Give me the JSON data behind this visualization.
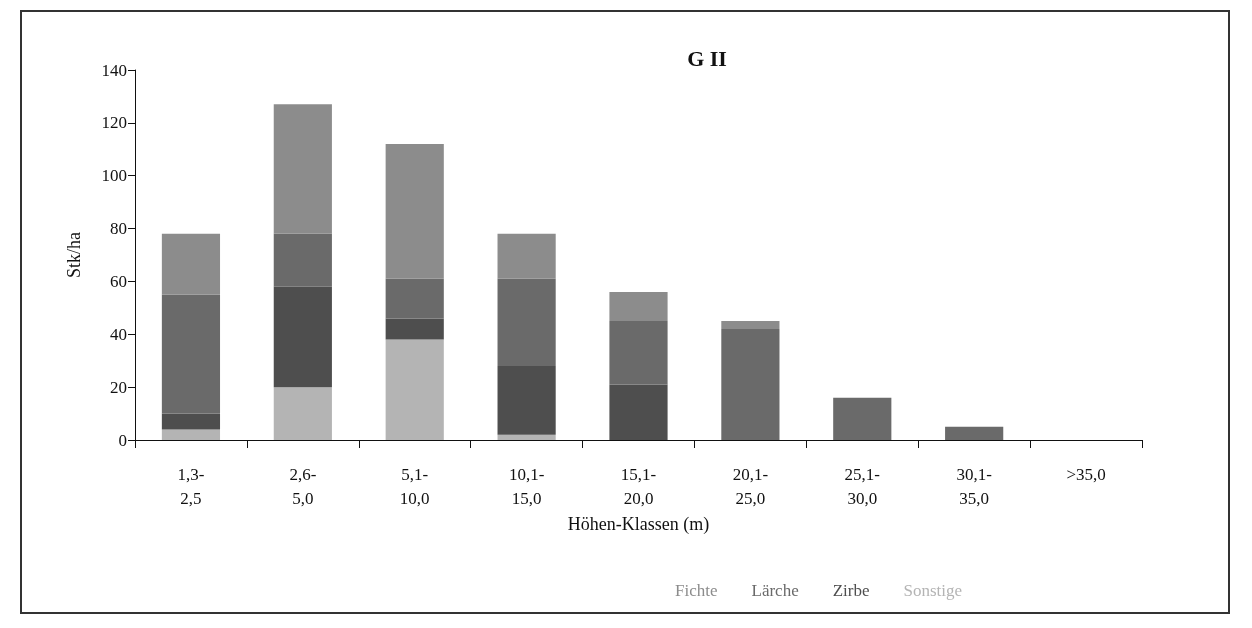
{
  "chart_data": {
    "type": "bar",
    "title": "G II",
    "xlabel": "Höhen-Klassen (m)",
    "ylabel": "Stk/ha",
    "categories": [
      "1,3-2,5",
      "2,6-5,0",
      "5,1-10,0",
      "10,1-15,0",
      "15,1-20,0",
      "20,1-25,0",
      "25,1-30,0",
      "30,1-35,0",
      ">35,0"
    ],
    "stacked": true,
    "series": [
      {
        "name": "Sonstige",
        "color": "#b4b4b4",
        "values": [
          4,
          20,
          38,
          2,
          0,
          0,
          0,
          0,
          0
        ]
      },
      {
        "name": "Zirbe",
        "color": "#4e4e4e",
        "values": [
          6,
          38,
          8,
          26,
          21,
          0,
          0,
          0,
          0
        ]
      },
      {
        "name": "Lärche",
        "color": "#6a6a6a",
        "values": [
          45,
          20,
          15,
          33,
          24,
          42,
          16,
          5,
          0
        ]
      },
      {
        "name": "Fichte",
        "color": "#8c8c8c",
        "values": [
          23,
          49,
          51,
          17,
          11,
          3,
          0,
          0,
          0
        ]
      }
    ],
    "ylim": [
      0,
      140
    ],
    "yticks": [
      0,
      20,
      40,
      60,
      80,
      100,
      120,
      140
    ],
    "grid": false,
    "legend": "bottom"
  }
}
